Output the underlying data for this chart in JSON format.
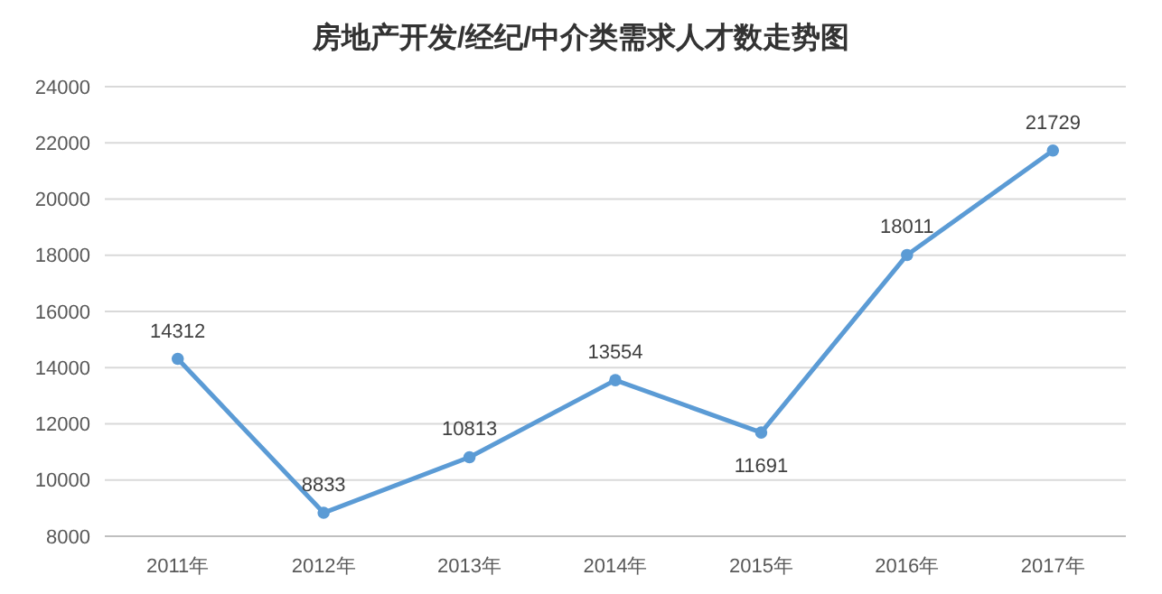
{
  "chart_data": {
    "type": "line",
    "title": "房地产开发/经纪/中介类需求人才数走势图",
    "categories": [
      "2011年",
      "2012年",
      "2013年",
      "2014年",
      "2015年",
      "2016年",
      "2017年"
    ],
    "series": [
      {
        "color": "#5b9bd5",
        "values": [
          14312,
          8833,
          10813,
          13554,
          11691,
          18011,
          21729
        ]
      }
    ],
    "ylim": [
      8000,
      24000
    ],
    "yticks": [
      8000,
      10000,
      12000,
      14000,
      16000,
      18000,
      20000,
      22000,
      24000
    ],
    "grid": "y",
    "marker": "circle",
    "data_labels": true
  }
}
